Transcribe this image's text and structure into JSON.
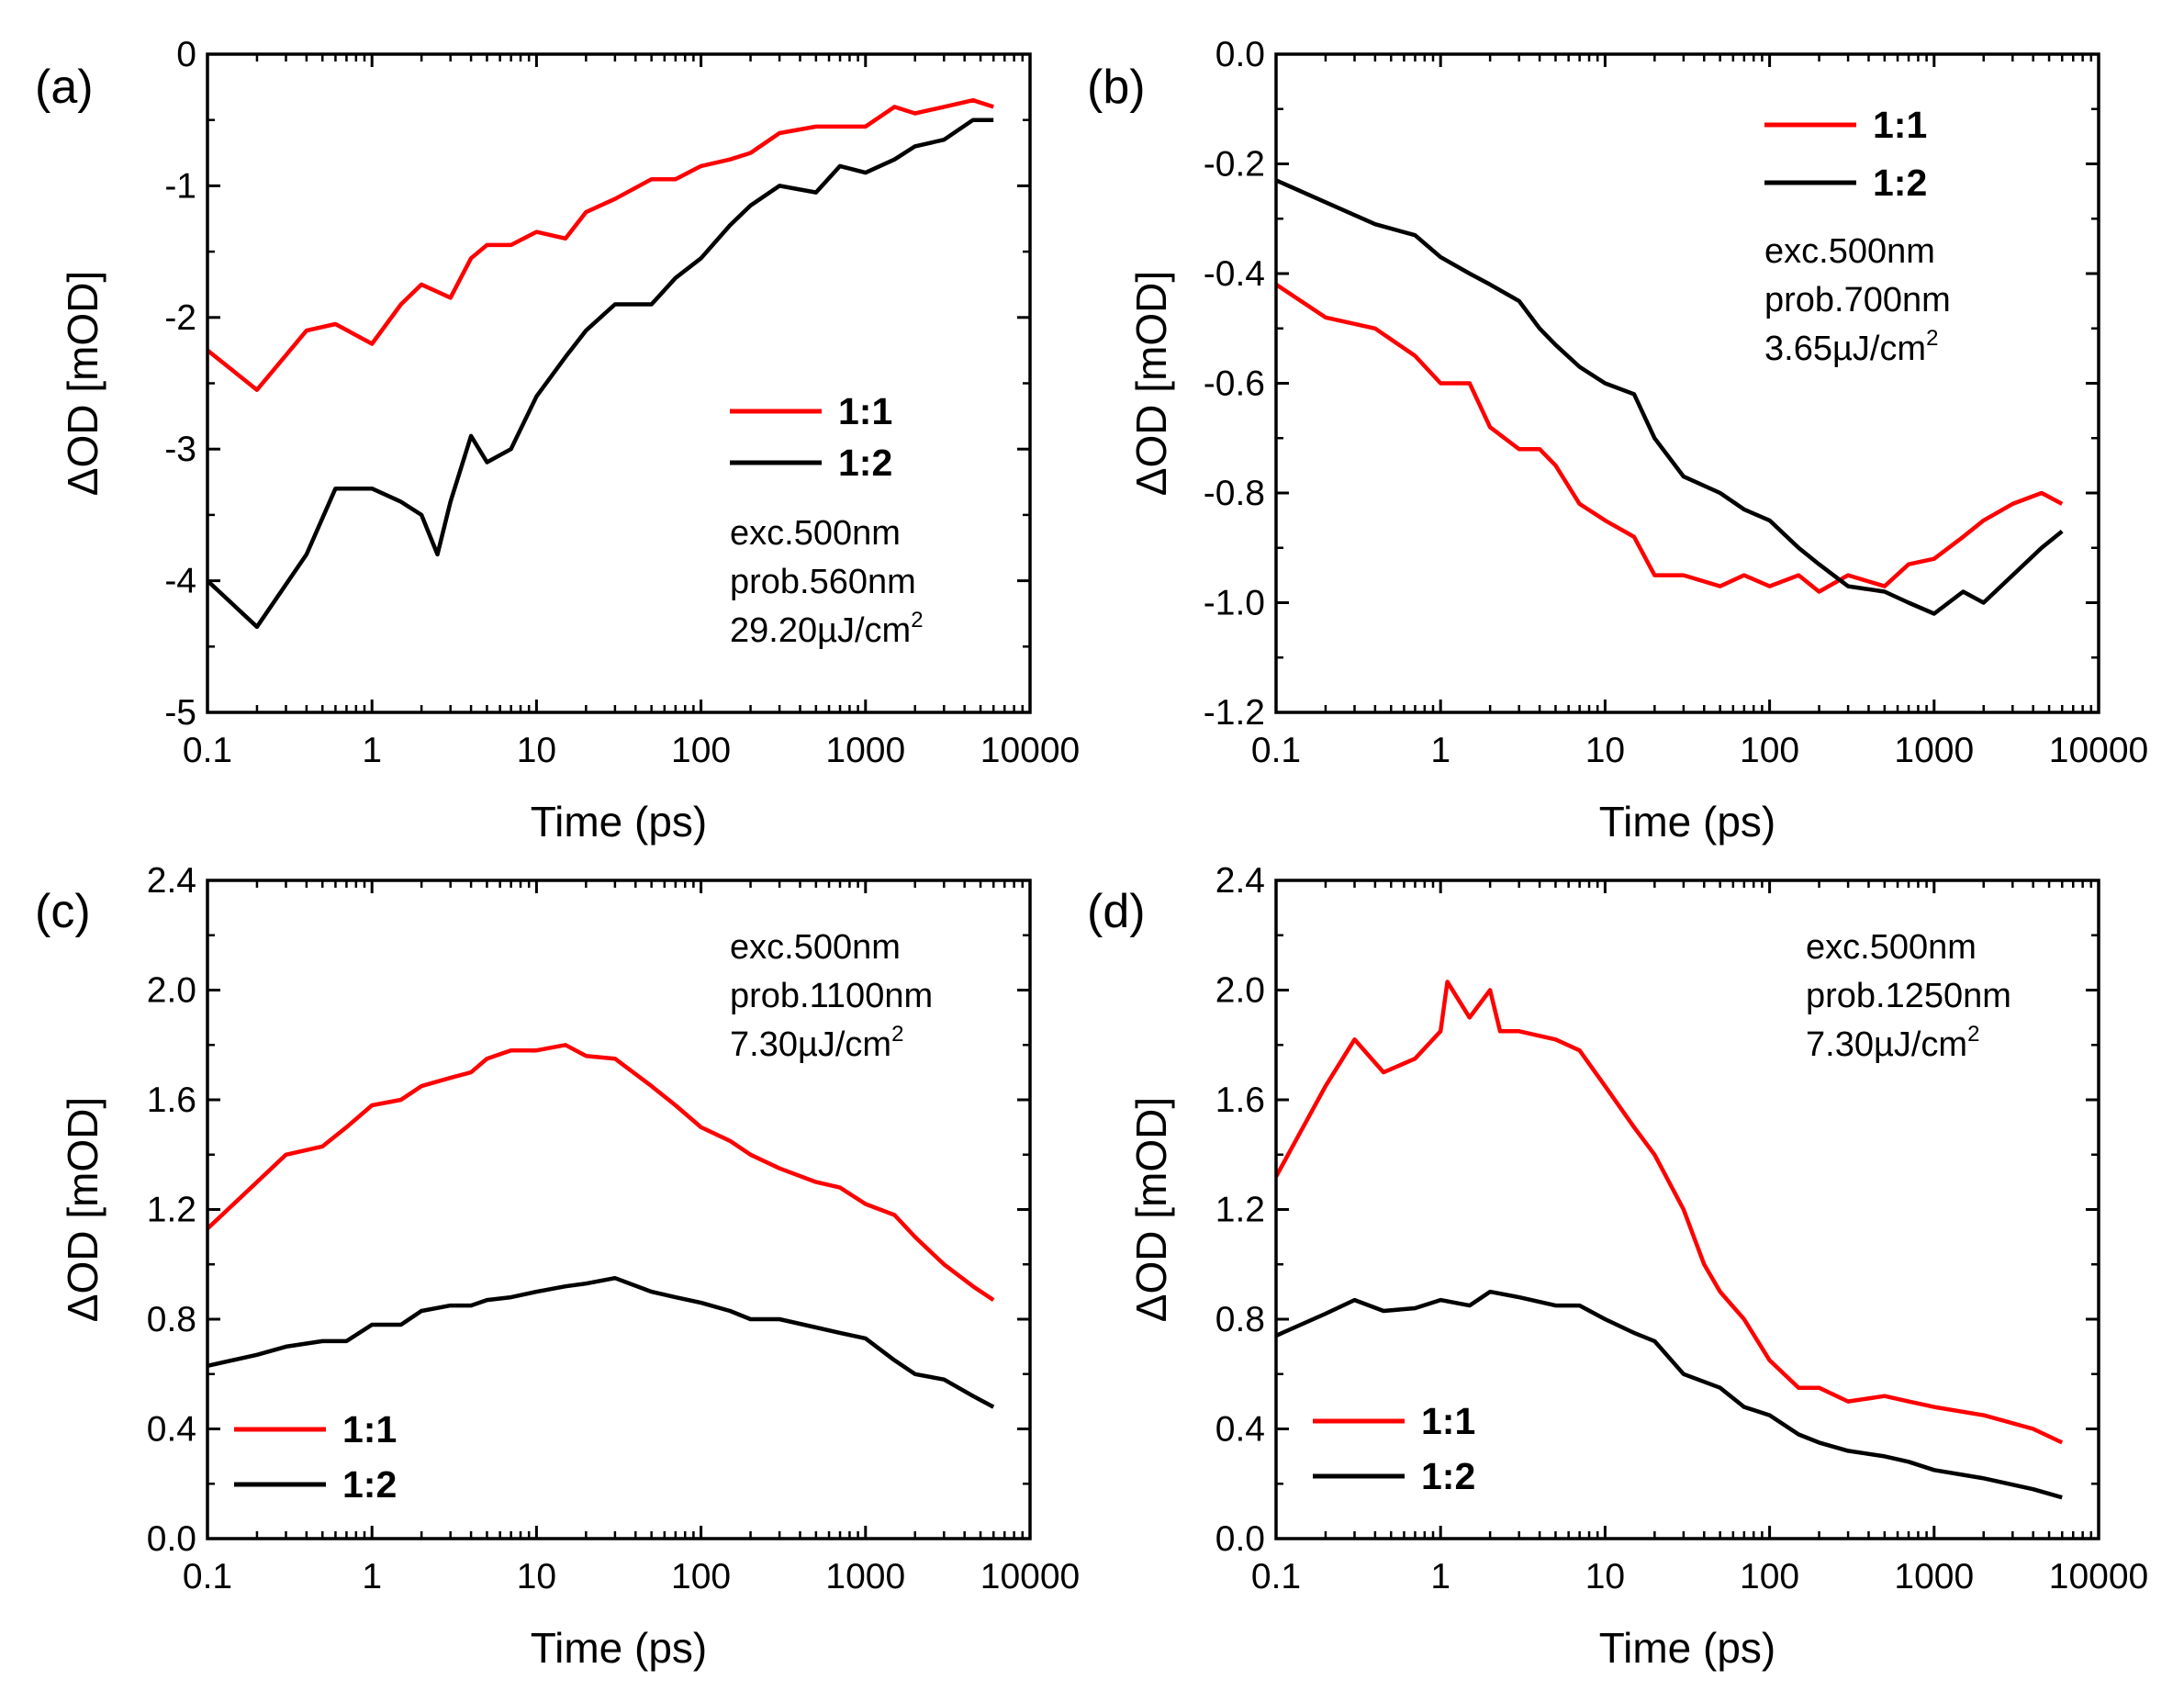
{
  "figure": {
    "colors": {
      "series_1_1": "#ff0000",
      "series_1_2": "#000000",
      "axis": "#000000"
    }
  },
  "chart_data": [
    {
      "type": "line",
      "panel_label": "(a)",
      "xlabel": "Time (ps)",
      "ylabel": "ΔOD [mOD]",
      "xscale": "log",
      "xlim": [
        0.1,
        10000
      ],
      "ylim": [
        -5,
        0
      ],
      "xticks": [
        "0.1",
        "1",
        "10",
        "100",
        "1000",
        "10000"
      ],
      "yticks": [
        "0",
        "-1",
        "-2",
        "-3",
        "-4",
        "-5"
      ],
      "yticks_values": [
        0,
        -1,
        -2,
        -3,
        -4,
        -5
      ],
      "legend_position": "center-right",
      "annotation": [
        "exc.500nm",
        "prob.560nm",
        "29.20µJ/cm",
        "2"
      ],
      "series": [
        {
          "name": "1:1",
          "color": "#ff0000",
          "x": [
            0.1,
            0.2,
            0.4,
            0.6,
            1,
            1.5,
            2,
            3,
            4,
            5,
            7,
            10,
            15,
            20,
            30,
            50,
            70,
            100,
            150,
            200,
            300,
            500,
            700,
            1000,
            1500,
            2000,
            3000,
            4500,
            6000
          ],
          "values": [
            -2.25,
            -2.55,
            -2.1,
            -2.05,
            -2.2,
            -1.9,
            -1.75,
            -1.85,
            -1.55,
            -1.45,
            -1.45,
            -1.35,
            -1.4,
            -1.2,
            -1.1,
            -0.95,
            -0.95,
            -0.85,
            -0.8,
            -0.75,
            -0.6,
            -0.55,
            -0.55,
            -0.55,
            -0.4,
            -0.45,
            -0.4,
            -0.35,
            -0.4
          ]
        },
        {
          "name": "1:2",
          "color": "#000000",
          "x": [
            0.1,
            0.2,
            0.4,
            0.6,
            1,
            1.5,
            2,
            2.5,
            3,
            4,
            5,
            7,
            10,
            15,
            20,
            30,
            50,
            70,
            100,
            150,
            200,
            300,
            500,
            700,
            1000,
            1500,
            2000,
            3000,
            4500,
            6000
          ],
          "values": [
            -4,
            -4.35,
            -3.8,
            -3.3,
            -3.3,
            -3.4,
            -3.5,
            -3.8,
            -3.4,
            -2.9,
            -3.1,
            -3.0,
            -2.6,
            -2.3,
            -2.1,
            -1.9,
            -1.9,
            -1.7,
            -1.55,
            -1.3,
            -1.15,
            -1.0,
            -1.05,
            -0.85,
            -0.9,
            -0.8,
            -0.7,
            -0.65,
            -0.5,
            -0.5
          ]
        }
      ]
    },
    {
      "type": "line",
      "panel_label": "(b)",
      "xlabel": "Time (ps)",
      "ylabel": "ΔOD [mOD]",
      "xscale": "log",
      "xlim": [
        0.1,
        10000
      ],
      "ylim": [
        -1.2,
        0
      ],
      "xticks": [
        "0.1",
        "1",
        "10",
        "100",
        "1000",
        "10000"
      ],
      "yticks": [
        "0.0",
        "-0.2",
        "-0.4",
        "-0.6",
        "-0.8",
        "-1.0",
        "-1.2"
      ],
      "yticks_values": [
        0,
        -0.2,
        -0.4,
        -0.6,
        -0.8,
        -1.0,
        -1.2
      ],
      "legend_position": "top-right",
      "annotation": [
        "exc.500nm",
        "prob.700nm",
        "3.65µJ/cm",
        "2"
      ],
      "series": [
        {
          "name": "1:1",
          "color": "#ff0000",
          "x": [
            0.1,
            0.2,
            0.4,
            0.7,
            1,
            1.5,
            2,
            3,
            4,
            5,
            7,
            10,
            15,
            20,
            30,
            50,
            70,
            100,
            150,
            200,
            300,
            500,
            700,
            1000,
            1500,
            2000,
            3000,
            4500,
            6000
          ],
          "values": [
            -0.42,
            -0.48,
            -0.5,
            -0.55,
            -0.6,
            -0.6,
            -0.68,
            -0.72,
            -0.72,
            -0.75,
            -0.82,
            -0.85,
            -0.88,
            -0.95,
            -0.95,
            -0.97,
            -0.95,
            -0.97,
            -0.95,
            -0.98,
            -0.95,
            -0.97,
            -0.93,
            -0.92,
            -0.88,
            -0.85,
            -0.82,
            -0.8,
            -0.82
          ]
        },
        {
          "name": "1:2",
          "color": "#000000",
          "x": [
            0.1,
            0.2,
            0.4,
            0.7,
            1,
            1.5,
            2,
            3,
            4,
            5,
            7,
            10,
            15,
            20,
            30,
            50,
            70,
            100,
            150,
            200,
            300,
            500,
            700,
            1000,
            1500,
            2000,
            3000,
            4500,
            6000
          ],
          "values": [
            -0.23,
            -0.27,
            -0.31,
            -0.33,
            -0.37,
            -0.4,
            -0.42,
            -0.45,
            -0.5,
            -0.53,
            -0.57,
            -0.6,
            -0.62,
            -0.7,
            -0.77,
            -0.8,
            -0.83,
            -0.85,
            -0.9,
            -0.93,
            -0.97,
            -0.98,
            -1.0,
            -1.02,
            -0.98,
            -1.0,
            -0.95,
            -0.9,
            -0.87
          ]
        }
      ]
    },
    {
      "type": "line",
      "panel_label": "(c)",
      "xlabel": "Time (ps)",
      "ylabel": "ΔOD [mOD]",
      "xscale": "log",
      "xlim": [
        0.1,
        10000
      ],
      "ylim": [
        0,
        2.4
      ],
      "xticks": [
        "0.1",
        "1",
        "10",
        "100",
        "1000",
        "10000"
      ],
      "yticks": [
        "0.0",
        "0.4",
        "0.8",
        "1.2",
        "1.6",
        "2.0",
        "2.4"
      ],
      "yticks_values": [
        0,
        0.4,
        0.8,
        1.2,
        1.6,
        2.0,
        2.4
      ],
      "legend_position": "bottom-left",
      "annotation": [
        "exc.500nm",
        "prob.1100nm",
        "7.30µJ/cm",
        "2"
      ],
      "series": [
        {
          "name": "1:1",
          "color": "#ff0000",
          "x": [
            0.1,
            0.2,
            0.3,
            0.5,
            0.7,
            1,
            1.5,
            2,
            3,
            4,
            5,
            7,
            10,
            15,
            20,
            30,
            50,
            70,
            100,
            150,
            200,
            300,
            500,
            700,
            1000,
            1500,
            2000,
            3000,
            4500,
            6000
          ],
          "values": [
            1.13,
            1.3,
            1.4,
            1.43,
            1.5,
            1.58,
            1.6,
            1.65,
            1.68,
            1.7,
            1.75,
            1.78,
            1.78,
            1.8,
            1.76,
            1.75,
            1.65,
            1.58,
            1.5,
            1.45,
            1.4,
            1.35,
            1.3,
            1.28,
            1.22,
            1.18,
            1.1,
            1.0,
            0.92,
            0.87
          ]
        },
        {
          "name": "1:2",
          "color": "#000000",
          "x": [
            0.1,
            0.2,
            0.3,
            0.5,
            0.7,
            1,
            1.5,
            2,
            3,
            4,
            5,
            7,
            10,
            15,
            20,
            30,
            50,
            70,
            100,
            150,
            200,
            300,
            500,
            700,
            1000,
            1500,
            2000,
            3000,
            4500,
            6000
          ],
          "values": [
            0.63,
            0.67,
            0.7,
            0.72,
            0.72,
            0.78,
            0.78,
            0.83,
            0.85,
            0.85,
            0.87,
            0.88,
            0.9,
            0.92,
            0.93,
            0.95,
            0.9,
            0.88,
            0.86,
            0.83,
            0.8,
            0.8,
            0.77,
            0.75,
            0.73,
            0.65,
            0.6,
            0.58,
            0.52,
            0.48
          ]
        }
      ]
    },
    {
      "type": "line",
      "panel_label": "(d)",
      "xlabel": "Time (ps)",
      "ylabel": "ΔOD [mOD]",
      "xscale": "log",
      "xlim": [
        0.1,
        10000
      ],
      "ylim": [
        0,
        2.4
      ],
      "xticks": [
        "0.1",
        "1",
        "10",
        "100",
        "1000",
        "10000"
      ],
      "yticks": [
        "0.0",
        "0.4",
        "0.8",
        "1.2",
        "1.6",
        "2.0",
        "2.4"
      ],
      "yticks_values": [
        0,
        0.4,
        0.8,
        1.2,
        1.6,
        2.0,
        2.4
      ],
      "legend_position": "bottom-left",
      "annotation": [
        "exc.500nm",
        "prob.1250nm",
        "7.30µJ/cm",
        "2"
      ],
      "series": [
        {
          "name": "1:1",
          "color": "#ff0000",
          "x": [
            0.1,
            0.2,
            0.3,
            0.45,
            0.7,
            1,
            1.1,
            1.5,
            2,
            2.3,
            3,
            5,
            7,
            10,
            15,
            20,
            30,
            40,
            50,
            70,
            100,
            150,
            200,
            300,
            500,
            700,
            1000,
            2000,
            4000,
            6000
          ],
          "values": [
            1.32,
            1.65,
            1.82,
            1.7,
            1.75,
            1.85,
            2.03,
            1.9,
            2.0,
            1.85,
            1.85,
            1.82,
            1.78,
            1.65,
            1.5,
            1.4,
            1.2,
            1.0,
            0.9,
            0.8,
            0.65,
            0.55,
            0.55,
            0.5,
            0.52,
            0.5,
            0.48,
            0.45,
            0.4,
            0.35
          ]
        },
        {
          "name": "1:2",
          "color": "#000000",
          "x": [
            0.1,
            0.2,
            0.3,
            0.45,
            0.7,
            1,
            1.5,
            2,
            3,
            5,
            7,
            10,
            15,
            20,
            30,
            50,
            70,
            100,
            150,
            200,
            300,
            500,
            700,
            1000,
            2000,
            4000,
            6000
          ],
          "values": [
            0.74,
            0.82,
            0.87,
            0.83,
            0.84,
            0.87,
            0.85,
            0.9,
            0.88,
            0.85,
            0.85,
            0.8,
            0.75,
            0.72,
            0.6,
            0.55,
            0.48,
            0.45,
            0.38,
            0.35,
            0.32,
            0.3,
            0.28,
            0.25,
            0.22,
            0.18,
            0.15
          ]
        }
      ]
    }
  ]
}
